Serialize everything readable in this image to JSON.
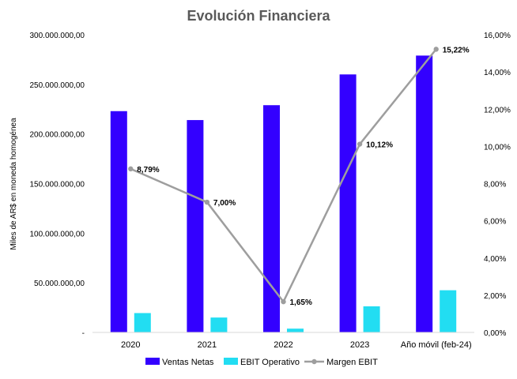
{
  "colors": {
    "ventas": "#3300ff",
    "ebit": "#22ddf2",
    "margen": "#9e9e9e",
    "axis": "#d9d9d9",
    "text": "#000000",
    "title": "#595959"
  },
  "chart_data": {
    "type": "bar",
    "title": "Evolución Financiera",
    "ylabel": "Miles de AR$  en moneda homogénea",
    "categories": [
      "2020",
      "2021",
      "2022",
      "2023",
      "Año móvil (feb-24)"
    ],
    "y_left": {
      "min": 0,
      "max": 300000000,
      "ticks": [
        0,
        50000000,
        100000000,
        150000000,
        200000000,
        250000000,
        300000000
      ],
      "tick_labels": [
        "-",
        "50.000.000,00",
        "100.000.000,00",
        "150.000.000,00",
        "200.000.000,00",
        "250.000.000,00",
        "300.000.000,00"
      ]
    },
    "y_right": {
      "min": 0,
      "max": 16,
      "ticks": [
        0,
        2,
        4,
        6,
        8,
        10,
        12,
        14,
        16
      ],
      "tick_labels": [
        "0,00%",
        "2,00%",
        "4,00%",
        "6,00%",
        "8,00%",
        "10,00%",
        "12,00%",
        "14,00%",
        "16,00%"
      ]
    },
    "series": [
      {
        "name": "Ventas Netas",
        "type": "bar",
        "axis": "left",
        "values": [
          223000000,
          214000000,
          229000000,
          260000000,
          279000000
        ]
      },
      {
        "name": "EBIT Operativo",
        "type": "bar",
        "axis": "left",
        "values": [
          19500000,
          15000000,
          3800000,
          26300000,
          42500000
        ]
      },
      {
        "name": "Margen EBIT",
        "type": "line",
        "axis": "right",
        "values": [
          8.79,
          7.0,
          1.65,
          10.12,
          15.22
        ],
        "labels": [
          "8,79%",
          "7,00%",
          "1,65%",
          "10,12%",
          "15,22%"
        ]
      }
    ],
    "legend_position": "bottom",
    "grid": false
  }
}
